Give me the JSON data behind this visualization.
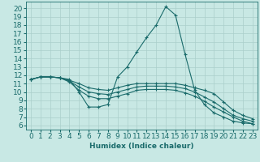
{
  "xlabel": "Humidex (Indice chaleur)",
  "xlim": [
    -0.5,
    23.5
  ],
  "ylim": [
    5.5,
    20.8
  ],
  "xticks": [
    0,
    1,
    2,
    3,
    4,
    5,
    6,
    7,
    8,
    9,
    10,
    11,
    12,
    13,
    14,
    15,
    16,
    17,
    18,
    19,
    20,
    21,
    22,
    23
  ],
  "yticks": [
    6,
    7,
    8,
    9,
    10,
    11,
    12,
    13,
    14,
    15,
    16,
    17,
    18,
    19,
    20
  ],
  "bg_color": "#c8e8e4",
  "line_color": "#1a6b6b",
  "grid_color": "#aacfcb",
  "lines": [
    {
      "x": [
        0,
        1,
        2,
        3,
        4,
        5,
        6,
        7,
        8,
        9,
        10,
        11,
        12,
        13,
        14,
        15,
        16,
        17,
        18,
        19,
        20,
        21,
        22,
        23
      ],
      "y": [
        11.5,
        11.8,
        11.8,
        11.7,
        11.5,
        10.0,
        8.2,
        8.2,
        8.5,
        11.8,
        13.0,
        14.8,
        16.5,
        18.0,
        20.2,
        19.2,
        14.5,
        10.2,
        8.5,
        7.5,
        7.0,
        6.5,
        6.3,
        6.2
      ]
    },
    {
      "x": [
        0,
        1,
        2,
        3,
        4,
        5,
        6,
        7,
        8,
        9,
        10,
        11,
        12,
        13,
        14,
        15,
        16,
        17,
        18,
        19,
        20,
        21,
        22,
        23
      ],
      "y": [
        11.5,
        11.8,
        11.8,
        11.7,
        11.4,
        11.0,
        10.5,
        10.3,
        10.2,
        10.5,
        10.8,
        11.0,
        11.0,
        11.0,
        11.0,
        11.0,
        10.8,
        10.5,
        10.2,
        9.8,
        8.8,
        7.8,
        7.2,
        6.8
      ]
    },
    {
      "x": [
        0,
        1,
        2,
        3,
        4,
        5,
        6,
        7,
        8,
        9,
        10,
        11,
        12,
        13,
        14,
        15,
        16,
        17,
        18,
        19,
        20,
        21,
        22,
        23
      ],
      "y": [
        11.5,
        11.8,
        11.8,
        11.7,
        11.3,
        10.6,
        10.0,
        9.8,
        9.7,
        10.0,
        10.3,
        10.6,
        10.7,
        10.7,
        10.7,
        10.6,
        10.4,
        10.0,
        9.4,
        8.8,
        8.0,
        7.2,
        6.8,
        6.5
      ]
    },
    {
      "x": [
        0,
        1,
        2,
        3,
        4,
        5,
        6,
        7,
        8,
        9,
        10,
        11,
        12,
        13,
        14,
        15,
        16,
        17,
        18,
        19,
        20,
        21,
        22,
        23
      ],
      "y": [
        11.5,
        11.8,
        11.8,
        11.7,
        11.2,
        10.2,
        9.5,
        9.2,
        9.2,
        9.5,
        9.8,
        10.2,
        10.3,
        10.3,
        10.3,
        10.2,
        9.9,
        9.5,
        8.9,
        8.2,
        7.6,
        7.0,
        6.5,
        6.2
      ]
    }
  ],
  "fontsize": 6.5,
  "marker": "+",
  "markersize": 2.5,
  "linewidth": 0.8
}
